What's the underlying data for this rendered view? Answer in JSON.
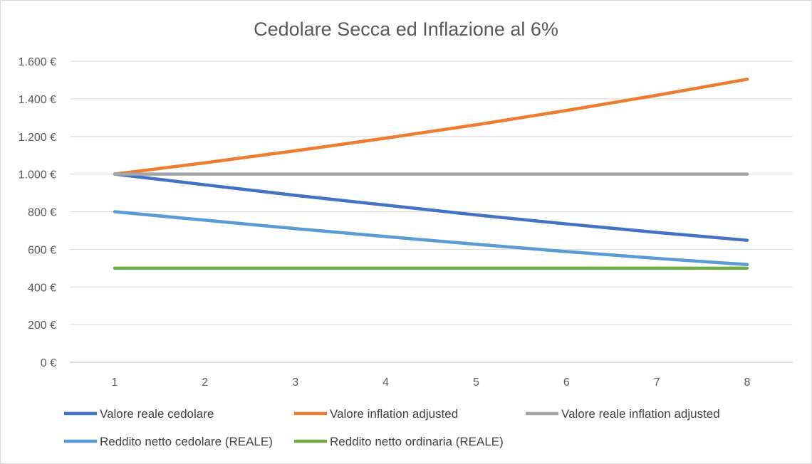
{
  "chart_data": {
    "type": "line",
    "title": "Cedolare Secca ed Inflazione al 6%",
    "xlabel": "",
    "ylabel": "",
    "x": [
      1,
      2,
      3,
      4,
      5,
      6,
      7,
      8
    ],
    "x_tick_labels": [
      "1",
      "2",
      "3",
      "4",
      "5",
      "6",
      "7",
      "8"
    ],
    "ylim": [
      0,
      1600
    ],
    "y_tick_values": [
      0,
      200,
      400,
      600,
      800,
      1000,
      1200,
      1400,
      1600
    ],
    "y_tick_labels": [
      "0 €",
      "200 €",
      "400 €",
      "600 €",
      "800 €",
      "1.000 €",
      "1.200 €",
      "1.400 €",
      "1.600 €"
    ],
    "grid": "horizontal",
    "legend_position": "bottom",
    "series": [
      {
        "name": "Valore reale cedolare",
        "color": "#4472c4",
        "values": [
          1000,
          943,
          887,
          835,
          783,
          735,
          690,
          648
        ]
      },
      {
        "name": "Valore inflation adjusted",
        "color": "#ed7d31",
        "values": [
          1000,
          1060,
          1124,
          1191,
          1262,
          1338,
          1419,
          1504
        ]
      },
      {
        "name": "Valore reale inflation adjusted",
        "color": "#a5a5a5",
        "values": [
          1000,
          1000,
          1000,
          1000,
          1000,
          1000,
          1000,
          1000
        ]
      },
      {
        "name": "Reddito netto cedolare (REALE)",
        "color": "#5b9bd5",
        "values": [
          800,
          755,
          710,
          668,
          627,
          588,
          552,
          519
        ]
      },
      {
        "name": "Reddito netto ordinaria (REALE)",
        "color": "#70ad47",
        "values": [
          500,
          500,
          500,
          500,
          500,
          500,
          500,
          500
        ]
      }
    ]
  }
}
